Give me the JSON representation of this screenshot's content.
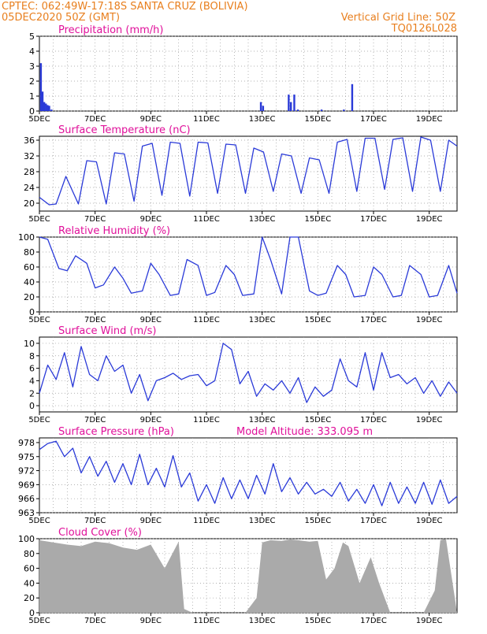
{
  "header": {
    "line1": "CPTEC:   062:49W-17:18S   SANTA CRUZ (BOLIVIA)",
    "line2": "05DEC2020 50Z (GMT)",
    "grid_note": "Vertical Grid Line: 50Z",
    "code": "TQ0126L028",
    "color": "#e87f1e"
  },
  "x_ticks": [
    "5DEC",
    "7DEC",
    "9DEC",
    "11DEC",
    "13DEC",
    "15DEC",
    "17DEC",
    "19DEC"
  ],
  "x_tick_days": [
    0,
    2,
    4,
    6,
    8,
    10,
    12,
    14
  ],
  "x_range_days": [
    0,
    15
  ],
  "title_color": "#e0109a",
  "line_color": "#2a3ad8",
  "cloud_color": "#aaaaaa",
  "chart_data": [
    {
      "type": "bar",
      "title": "Precipitation (mm/h)",
      "ylim": [
        0,
        5
      ],
      "yticks": [
        "0",
        "1",
        "2",
        "3",
        "4",
        "5"
      ],
      "x_days": [
        0.02,
        0.08,
        0.14,
        0.2,
        0.26,
        0.32,
        0.4,
        7.92,
        8.0,
        8.92,
        9.0,
        9.12,
        9.25,
        10.1,
        10.9,
        11.2
      ],
      "values": [
        3.2,
        1.3,
        0.6,
        0.5,
        0.4,
        0.35,
        0.1,
        0.6,
        0.35,
        1.1,
        0.6,
        1.1,
        0.1,
        0.1,
        0.1,
        1.8
      ]
    },
    {
      "type": "line",
      "title": "Surface Temperature (nC)",
      "ylim": [
        18,
        37
      ],
      "yticks": [
        "20",
        "24",
        "28",
        "32",
        "36"
      ],
      "x": [
        0,
        0.35,
        0.6,
        0.95,
        1.4,
        1.7,
        2.05,
        2.4,
        2.7,
        3.05,
        3.4,
        3.7,
        4.05,
        4.4,
        4.7,
        5.05,
        5.4,
        5.7,
        6.05,
        6.4,
        6.7,
        7.05,
        7.4,
        7.7,
        8.05,
        8.4,
        8.7,
        9.05,
        9.4,
        9.7,
        10.05,
        10.4,
        10.7,
        11.05,
        11.4,
        11.7,
        12.05,
        12.4,
        12.7,
        13.05,
        13.4,
        13.7,
        14.05,
        14.4,
        14.7,
        15
      ],
      "series": [
        {
          "values": [
            21.5,
            19.6,
            19.8,
            26.8,
            19.8,
            30.8,
            30.5,
            19.8,
            32.8,
            32.5,
            20.5,
            34.5,
            35.2,
            22.0,
            35.5,
            35.2,
            21.8,
            35.5,
            35.3,
            22.5,
            35.0,
            34.8,
            22.5,
            34.0,
            33.0,
            23.0,
            32.5,
            32.0,
            22.5,
            31.5,
            31.0,
            22.5,
            35.5,
            36.2,
            23.0,
            36.5,
            36.5,
            23.5,
            36.2,
            36.6,
            23.0,
            36.8,
            36.0,
            23.0,
            36.0,
            34.5
          ]
        }
      ]
    },
    {
      "type": "line",
      "title": "Relative Humidity (%)",
      "ylim": [
        0,
        100
      ],
      "yticks": [
        "0",
        "20",
        "40",
        "60",
        "80",
        "100"
      ],
      "x": [
        0,
        0.3,
        0.7,
        1.0,
        1.3,
        1.7,
        2.0,
        2.3,
        2.7,
        3.0,
        3.3,
        3.7,
        4.0,
        4.3,
        4.7,
        5.0,
        5.3,
        5.7,
        6.0,
        6.3,
        6.7,
        7.0,
        7.3,
        7.7,
        8.0,
        8.3,
        8.7,
        9.0,
        9.3,
        9.7,
        10.0,
        10.3,
        10.7,
        11.0,
        11.3,
        11.7,
        12.0,
        12.3,
        12.7,
        13.0,
        13.3,
        13.7,
        14.0,
        14.3,
        14.7,
        15
      ],
      "series": [
        {
          "values": [
            100,
            97,
            58,
            55,
            75,
            65,
            32,
            36,
            60,
            45,
            25,
            28,
            65,
            50,
            22,
            24,
            70,
            62,
            22,
            26,
            62,
            50,
            22,
            24,
            100,
            70,
            24,
            100,
            100,
            28,
            22,
            25,
            62,
            50,
            20,
            22,
            60,
            50,
            20,
            22,
            62,
            50,
            20,
            22,
            62,
            25
          ]
        }
      ]
    },
    {
      "type": "line",
      "title": "Surface Wind (m/s)",
      "ylim": [
        -1,
        11
      ],
      "yticks": [
        "0",
        "2",
        "4",
        "6",
        "8",
        "10"
      ],
      "x": [
        0,
        0.3,
        0.6,
        0.9,
        1.2,
        1.5,
        1.8,
        2.1,
        2.4,
        2.7,
        3.0,
        3.3,
        3.6,
        3.9,
        4.2,
        4.5,
        4.8,
        5.1,
        5.4,
        5.7,
        6.0,
        6.3,
        6.6,
        6.9,
        7.2,
        7.5,
        7.8,
        8.1,
        8.4,
        8.7,
        9.0,
        9.3,
        9.6,
        9.9,
        10.2,
        10.5,
        10.8,
        11.1,
        11.4,
        11.7,
        12.0,
        12.3,
        12.6,
        12.9,
        13.2,
        13.5,
        13.8,
        14.1,
        14.4,
        14.7,
        15
      ],
      "series": [
        {
          "values": [
            2.0,
            6.5,
            4.2,
            8.5,
            3.0,
            9.5,
            5.0,
            4.0,
            8.0,
            5.5,
            6.5,
            2.0,
            5.0,
            0.8,
            4.0,
            4.5,
            5.2,
            4.2,
            4.8,
            5.0,
            3.2,
            4.0,
            10.0,
            9.0,
            3.5,
            5.5,
            1.5,
            3.5,
            2.5,
            4.0,
            2.0,
            4.5,
            0.5,
            3.0,
            1.5,
            2.5,
            7.5,
            4.0,
            3.0,
            8.5,
            2.5,
            8.5,
            4.5,
            5.0,
            3.5,
            4.5,
            2.0,
            4.0,
            1.5,
            3.8,
            2.0
          ]
        }
      ]
    },
    {
      "type": "line",
      "title": "Surface Pressure (hPa)",
      "annotation": "Model Altitude: 333.095 m",
      "ylim": [
        963,
        979
      ],
      "yticks": [
        "963",
        "966",
        "969",
        "972",
        "975",
        "978"
      ],
      "x": [
        0,
        0.3,
        0.6,
        0.9,
        1.2,
        1.5,
        1.8,
        2.1,
        2.4,
        2.7,
        3.0,
        3.3,
        3.6,
        3.9,
        4.2,
        4.5,
        4.8,
        5.1,
        5.4,
        5.7,
        6.0,
        6.3,
        6.6,
        6.9,
        7.2,
        7.5,
        7.8,
        8.1,
        8.4,
        8.7,
        9.0,
        9.3,
        9.6,
        9.9,
        10.2,
        10.5,
        10.8,
        11.1,
        11.4,
        11.7,
        12.0,
        12.3,
        12.6,
        12.9,
        13.2,
        13.5,
        13.8,
        14.1,
        14.4,
        14.7,
        15
      ],
      "series": [
        {
          "values": [
            976.5,
            977.8,
            978.3,
            975.0,
            976.8,
            971.5,
            975.0,
            970.8,
            974.0,
            969.5,
            973.5,
            969.0,
            975.5,
            969.0,
            972.5,
            968.5,
            975.2,
            968.5,
            971.5,
            965.5,
            969.0,
            965.0,
            970.5,
            966.0,
            970.0,
            966.0,
            971.0,
            967.0,
            973.5,
            967.5,
            970.5,
            967.0,
            969.5,
            967.0,
            968.0,
            966.5,
            969.5,
            965.5,
            968.0,
            965.0,
            969.0,
            964.5,
            969.5,
            965.0,
            968.5,
            965.0,
            969.5,
            964.8,
            970.0,
            965.0,
            966.5
          ]
        }
      ]
    },
    {
      "type": "area",
      "title": "Cloud Cover (%)",
      "ylim": [
        0,
        100
      ],
      "yticks": [
        "0",
        "20",
        "40",
        "60",
        "80",
        "100"
      ],
      "x": [
        0,
        0.5,
        1.0,
        1.5,
        2.0,
        2.5,
        3.0,
        3.5,
        4.0,
        4.5,
        5.0,
        5.2,
        5.5,
        6.0,
        6.5,
        7.0,
        7.4,
        7.8,
        8.0,
        8.3,
        8.7,
        9.0,
        9.3,
        9.7,
        10.0,
        10.3,
        10.6,
        10.9,
        11.1,
        11.5,
        11.9,
        12.2,
        12.6,
        13.0,
        13.4,
        13.8,
        14.2,
        14.4,
        14.6,
        15
      ],
      "series": [
        {
          "values": [
            98,
            95,
            92,
            90,
            96,
            94,
            88,
            85,
            92,
            60,
            96,
            5,
            0,
            0,
            0,
            0,
            0,
            20,
            95,
            98,
            97,
            99,
            98,
            96,
            97,
            45,
            60,
            95,
            90,
            40,
            75,
            40,
            0,
            0,
            0,
            0,
            30,
            98,
            100,
            0
          ]
        }
      ]
    }
  ]
}
